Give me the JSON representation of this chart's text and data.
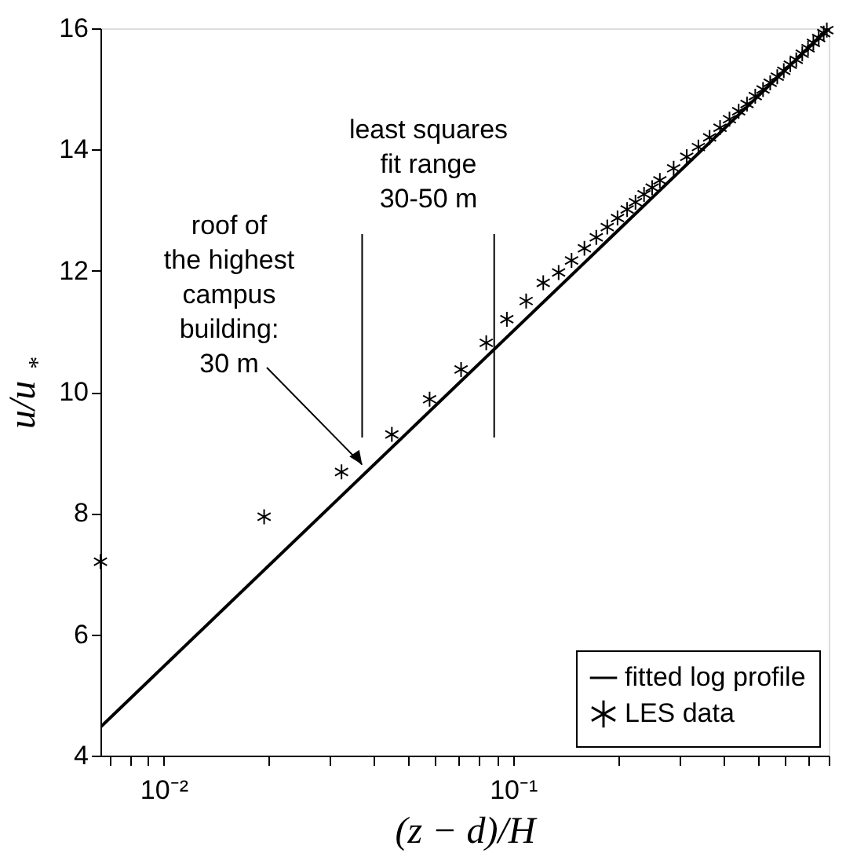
{
  "chart_data": {
    "type": "scatter",
    "xlabel": "(z − d)/H",
    "ylabel": "u/u$_{*}$",
    "log": "x",
    "legend": "bottom right",
    "grid": false,
    "xlim": [
      0.0066,
      0.8
    ],
    "ylim": [
      4,
      16
    ],
    "xticks": [
      {
        "value": 0.007,
        "label": null
      },
      {
        "value": 0.008,
        "label": null
      },
      {
        "value": 0.009,
        "label": null
      },
      {
        "value": 0.01,
        "label": "10⁻²"
      },
      {
        "value": 0.02,
        "label": null
      },
      {
        "value": 0.03,
        "label": null
      },
      {
        "value": 0.04,
        "label": null
      },
      {
        "value": 0.05,
        "label": null
      },
      {
        "value": 0.06,
        "label": null
      },
      {
        "value": 0.07,
        "label": null
      },
      {
        "value": 0.08,
        "label": null
      },
      {
        "value": 0.09,
        "label": null
      },
      {
        "value": 0.1,
        "label": "10⁻¹"
      },
      {
        "value": 0.2,
        "label": null
      },
      {
        "value": 0.3,
        "label": null
      },
      {
        "value": 0.4,
        "label": null
      },
      {
        "value": 0.5,
        "label": null
      },
      {
        "value": 0.6,
        "label": null
      },
      {
        "value": 0.7,
        "label": null
      },
      {
        "value": 0.8,
        "label": null
      }
    ],
    "yticks": [
      4,
      6,
      8,
      10,
      12,
      14,
      16
    ],
    "series": [
      {
        "name": "fitted log profile",
        "type": "line",
        "color": "#000000",
        "line_style": "solid",
        "marker": "none",
        "x": [
          0.0066,
          0.8
        ],
        "values": [
          4.47,
          16.0
        ]
      },
      {
        "name": "LES data",
        "color": "#000000",
        "marker": "cross",
        "x": [
          0.0066,
          0.0194,
          0.0323,
          0.045,
          0.0577,
          0.071,
          0.0838,
          0.096,
          0.109,
          0.122,
          0.135,
          0.147,
          0.16,
          0.173,
          0.186,
          0.199,
          0.212,
          0.224,
          0.237,
          0.25,
          0.263,
          0.288,
          0.314,
          0.339,
          0.365,
          0.391,
          0.416,
          0.442,
          0.467,
          0.493,
          0.519,
          0.544,
          0.57,
          0.595,
          0.621,
          0.646,
          0.672,
          0.698,
          0.723,
          0.749,
          0.774,
          0.79
        ],
        "values": [
          7.2,
          7.94,
          8.68,
          9.3,
          9.88,
          10.37,
          10.81,
          11.2,
          11.5,
          11.8,
          11.97,
          12.17,
          12.37,
          12.55,
          12.72,
          12.87,
          13.01,
          13.13,
          13.26,
          13.37,
          13.49,
          13.69,
          13.88,
          14.04,
          14.2,
          14.36,
          14.5,
          14.63,
          14.75,
          14.88,
          14.99,
          15.1,
          15.2,
          15.3,
          15.4,
          15.48,
          15.58,
          15.67,
          15.76,
          15.84,
          15.92,
          15.97
        ]
      }
    ],
    "ref_lines": [
      {
        "axis": "x",
        "value": 0.037
      },
      {
        "axis": "x",
        "value": 0.0883
      }
    ],
    "annotations": [
      "least squares\nfit range\n30-50 m",
      {
        "text": "roof of\nthe highest\ncampus\nbuilding:\n30 m",
        "x": 0.037,
        "y": 8.8
      }
    ]
  }
}
